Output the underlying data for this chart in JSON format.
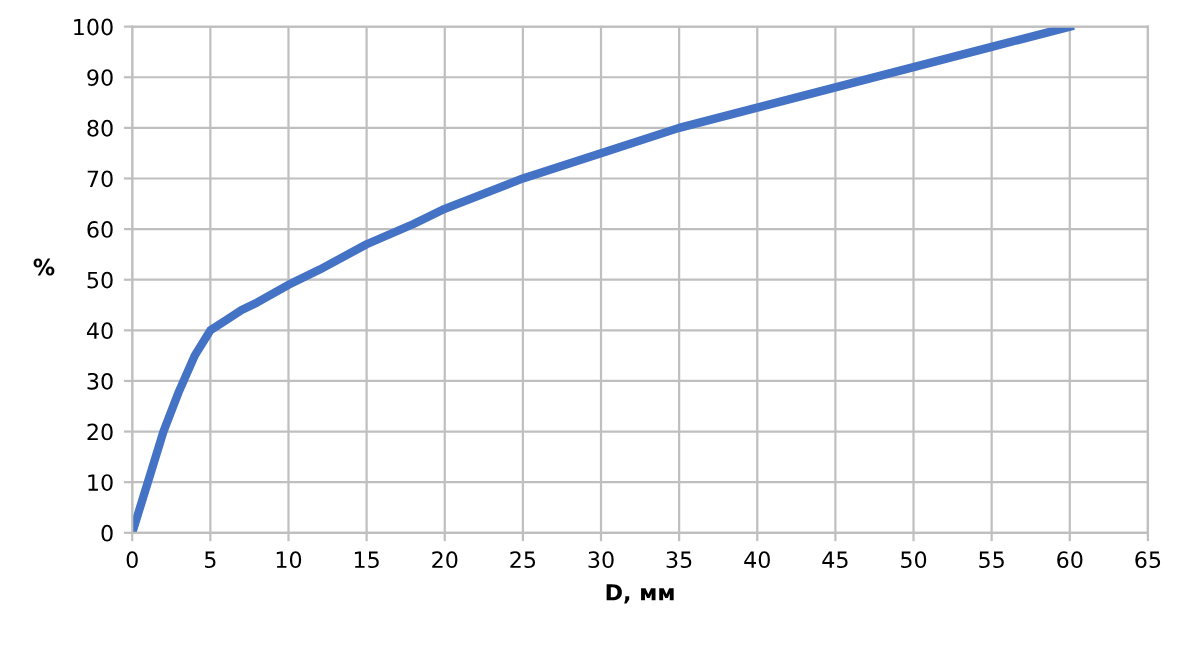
{
  "chart_data": {
    "type": "line",
    "xlabel": "D, мм",
    "ylabel": "%",
    "x": [
      0,
      0.5,
      1,
      2,
      3,
      4,
      5,
      6,
      7,
      8,
      10,
      12,
      15,
      18,
      20,
      25,
      30,
      35,
      40,
      45,
      50,
      55,
      60
    ],
    "series": [
      {
        "color": "#4472c4",
        "values": [
          0,
          5,
          10,
          20,
          28,
          35,
          40,
          42,
          44,
          45.5,
          49,
          52,
          57,
          61,
          64,
          70,
          75,
          80,
          84,
          88,
          92,
          96,
          100
        ]
      }
    ],
    "xlim": [
      0,
      65
    ],
    "xticks": [
      0,
      5,
      10,
      15,
      20,
      25,
      30,
      35,
      40,
      45,
      50,
      55,
      60,
      65
    ],
    "ylim": [
      0,
      100
    ],
    "yticks": [
      0,
      10,
      20,
      30,
      40,
      50,
      60,
      70,
      80,
      90,
      100
    ],
    "grid": true,
    "marker": "none",
    "line_style": "solid"
  }
}
